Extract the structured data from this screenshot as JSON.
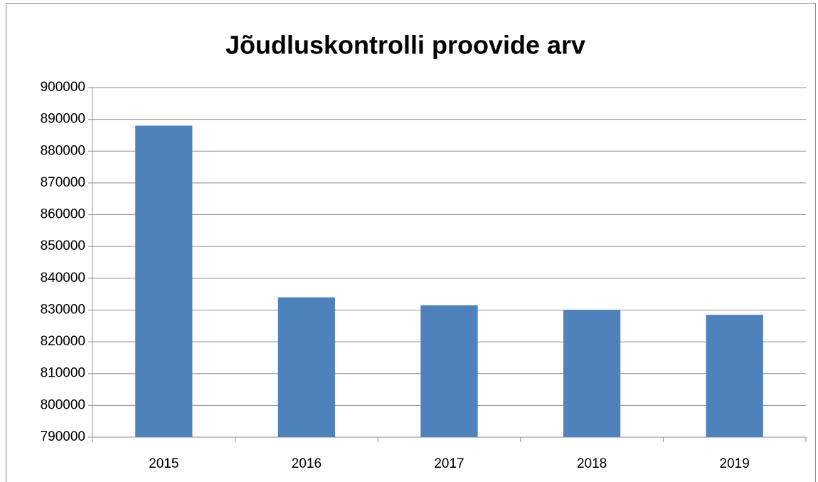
{
  "chart_data": {
    "type": "bar",
    "title": "Jõudluskontrolli proovide arv",
    "categories": [
      "2015",
      "2016",
      "2017",
      "2018",
      "2019"
    ],
    "values": [
      888000,
      834000,
      831500,
      830000,
      828500
    ],
    "color": "#4f81bd",
    "ylim": [
      790000,
      900000
    ],
    "yticks": [
      790000,
      800000,
      810000,
      820000,
      830000,
      840000,
      850000,
      860000,
      870000,
      880000,
      890000,
      900000
    ],
    "grid": true
  }
}
